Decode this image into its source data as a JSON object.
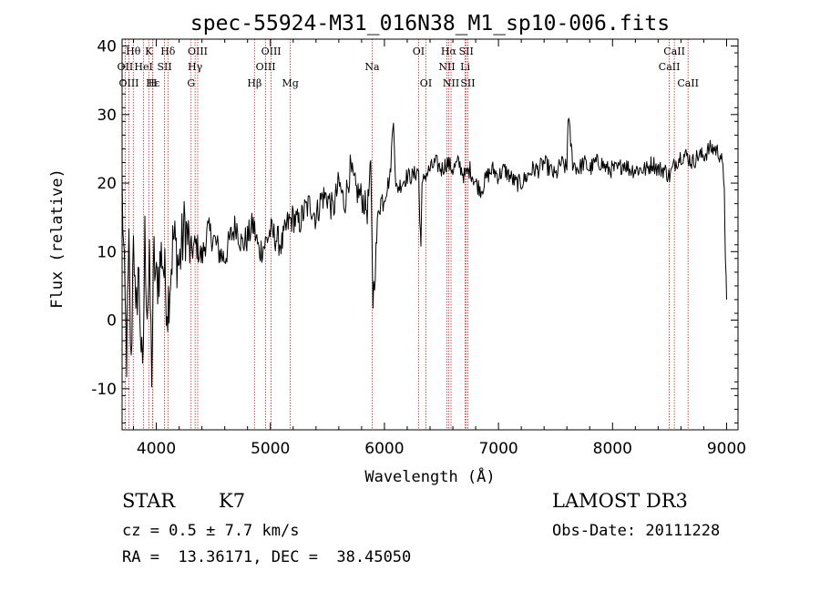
{
  "chart_data": {
    "type": "line",
    "title": "spec-55924-M31_016N38_M1_sp10-006.fits",
    "xlabel": "Wavelength (Å)",
    "ylabel": "Flux (relative)",
    "xlim": [
      3700,
      9100
    ],
    "ylim": [
      -16,
      41
    ],
    "x_ticks": [
      4000,
      5000,
      6000,
      7000,
      8000,
      9000
    ],
    "y_ticks": [
      -10,
      0,
      10,
      20,
      30,
      40
    ],
    "line_color": "#000000",
    "marker_color": "#cc2020",
    "series": [
      {
        "name": "spectrum",
        "x": [
          3700,
          3720,
          3740,
          3760,
          3780,
          3800,
          3820,
          3840,
          3860,
          3880,
          3900,
          3920,
          3940,
          3960,
          3980,
          4000,
          4050,
          4100,
          4150,
          4200,
          4250,
          4300,
          4350,
          4400,
          4450,
          4500,
          4550,
          4600,
          4650,
          4700,
          4750,
          4800,
          4850,
          4900,
          4950,
          5000,
          5050,
          5100,
          5150,
          5200,
          5250,
          5300,
          5350,
          5400,
          5450,
          5500,
          5550,
          5600,
          5650,
          5700,
          5750,
          5800,
          5850,
          5880,
          5900,
          5920,
          5950,
          6000,
          6050,
          6080,
          6100,
          6150,
          6200,
          6250,
          6300,
          6310,
          6320,
          6330,
          6350,
          6400,
          6450,
          6500,
          6550,
          6600,
          6650,
          6700,
          6750,
          6800,
          6850,
          6900,
          6950,
          7000,
          7050,
          7100,
          7150,
          7200,
          7250,
          7300,
          7350,
          7400,
          7450,
          7500,
          7550,
          7600,
          7610,
          7650,
          7700,
          7750,
          7800,
          7850,
          7900,
          7950,
          8000,
          8050,
          8100,
          8150,
          8200,
          8250,
          8300,
          8350,
          8400,
          8450,
          8500,
          8550,
          8600,
          8650,
          8700,
          8750,
          8800,
          8850,
          8900,
          8950,
          8980,
          8990,
          9000
        ],
        "y": [
          20,
          5,
          -5,
          10,
          -8,
          15,
          -2,
          8,
          0,
          -10,
          12,
          2,
          7,
          -7,
          9,
          5,
          10,
          2,
          12,
          8,
          14,
          10,
          11,
          9,
          13,
          12,
          10,
          9,
          12,
          14,
          11,
          12,
          14,
          10,
          11,
          13,
          12,
          11,
          14,
          15,
          14,
          16,
          17,
          15,
          18,
          18,
          16,
          20,
          17,
          22,
          19,
          18,
          16,
          22,
          3,
          8,
          17,
          18,
          21,
          30,
          19,
          20,
          21,
          21,
          22,
          14,
          12,
          19,
          21,
          22,
          23,
          22,
          23,
          22,
          23,
          21,
          22,
          20,
          19,
          21,
          22,
          21,
          22,
          21,
          20,
          20,
          21,
          22,
          22,
          23,
          22,
          21,
          23,
          22,
          30,
          23,
          22,
          23,
          22,
          23,
          23,
          22,
          22,
          22,
          23,
          22,
          22,
          22,
          22,
          23,
          22,
          22,
          21,
          23,
          24,
          24,
          23,
          24,
          24,
          25,
          25,
          24,
          20,
          8,
          3
        ]
      }
    ],
    "line_markers": [
      {
        "label": "Hθ",
        "x": 3798,
        "row": 1
      },
      {
        "label": "K",
        "x": 3934,
        "row": 1
      },
      {
        "label": "Hδ",
        "x": 4102,
        "row": 1
      },
      {
        "label": "OIII",
        "x": 4363,
        "row": 1
      },
      {
        "label": "OIII",
        "x": 5007,
        "row": 1
      },
      {
        "label": "OI",
        "x": 6300,
        "row": 1
      },
      {
        "label": "Hα",
        "x": 6563,
        "row": 1
      },
      {
        "label": "SII",
        "x": 6717,
        "row": 1
      },
      {
        "label": "CaII",
        "x": 8542,
        "row": 1
      },
      {
        "label": "OII",
        "x": 3727,
        "row": 2
      },
      {
        "label": "HeI",
        "x": 3889,
        "row": 2
      },
      {
        "label": "SII",
        "x": 4072,
        "row": 2
      },
      {
        "label": "Hγ",
        "x": 4340,
        "row": 2
      },
      {
        "label": "OIII",
        "x": 4959,
        "row": 2
      },
      {
        "label": "Na",
        "x": 5893,
        "row": 2
      },
      {
        "label": "NII",
        "x": 6548,
        "row": 2
      },
      {
        "label": "Li",
        "x": 6708,
        "row": 2
      },
      {
        "label": "CaII",
        "x": 8498,
        "row": 2
      },
      {
        "label": "OIII",
        "x": 3760,
        "row": 3
      },
      {
        "label": "Hε",
        "x": 3970,
        "row": 3
      },
      {
        "label": "H",
        "x": 3968,
        "row": 3
      },
      {
        "label": "G",
        "x": 4305,
        "row": 3
      },
      {
        "label": "Hβ",
        "x": 4861,
        "row": 3
      },
      {
        "label": "Mg",
        "x": 5175,
        "row": 3
      },
      {
        "label": "OI",
        "x": 6364,
        "row": 3
      },
      {
        "label": "NII",
        "x": 6584,
        "row": 3
      },
      {
        "label": "SII",
        "x": 6731,
        "row": 3
      },
      {
        "label": "CaII",
        "x": 8662,
        "row": 3
      }
    ]
  },
  "info": {
    "object_class": "STAR",
    "subclass": "K7",
    "survey": "LAMOST DR3",
    "cz": "cz = 0.5 ± 7.7 km/s",
    "obs_date": "Obs-Date: 20111228",
    "coords": "RA =  13.36171, DEC =  38.45050"
  }
}
